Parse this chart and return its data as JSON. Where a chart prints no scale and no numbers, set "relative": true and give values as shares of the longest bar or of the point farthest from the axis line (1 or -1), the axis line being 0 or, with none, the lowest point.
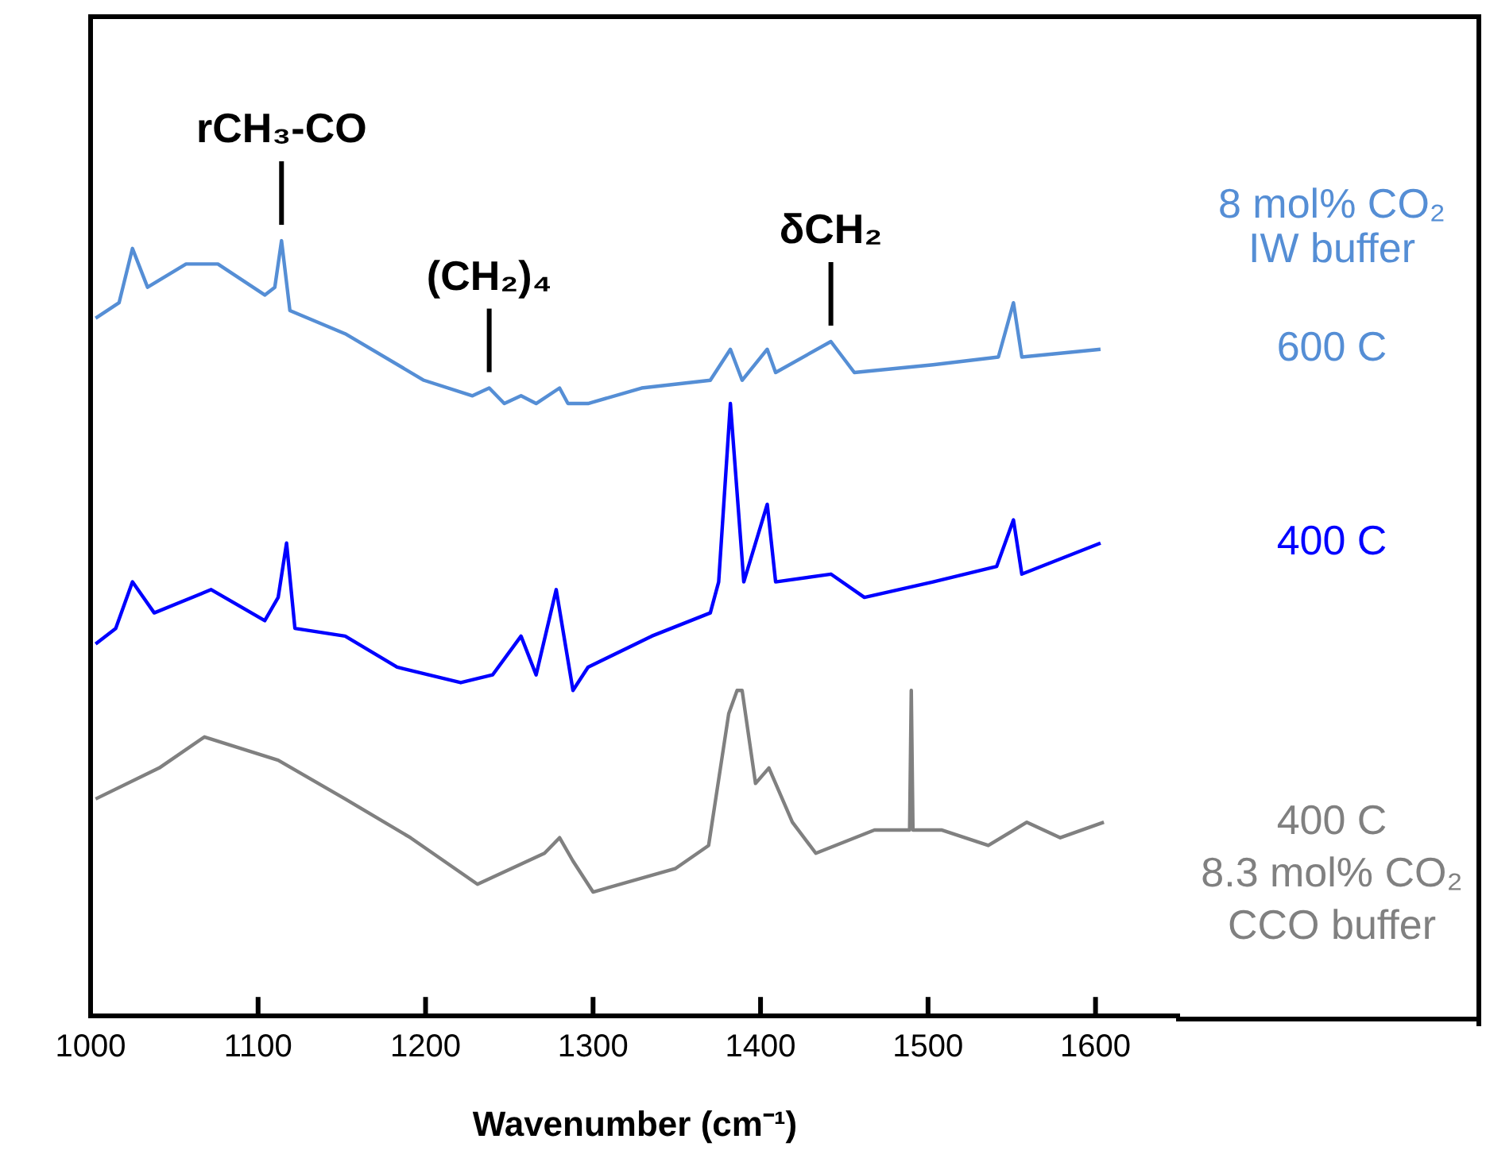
{
  "chart_data": {
    "type": "line",
    "relative": true,
    "xlabel": "Wavenumber (cm⁻¹)",
    "xlim": [
      1000,
      1650
    ],
    "xticks": [
      1000,
      1100,
      1200,
      1300,
      1400,
      1500,
      1600
    ],
    "grid": false,
    "legend": false,
    "marker": "none",
    "line_style": "solid",
    "annotations": [
      {
        "text": "rCH₃-CO",
        "x": 1114,
        "y": 1.0
      },
      {
        "text": "(CH₂)₄",
        "x": 1238,
        "y": 0.81
      },
      {
        "text": "δCH₂",
        "x": 1442,
        "y": 0.87
      },
      "8 mol% CO₂\nIW buffer"
    ],
    "series": [
      {
        "name": "600 C",
        "color": "#558ed5",
        "x": [
          1003,
          1017,
          1025,
          1034,
          1057,
          1076,
          1104,
          1110,
          1114,
          1119,
          1152,
          1199,
          1228,
          1238,
          1247,
          1257,
          1266,
          1280,
          1285,
          1297,
          1329,
          1370,
          1382,
          1389,
          1404,
          1409,
          1442,
          1456,
          1503,
          1542,
          1551,
          1556,
          1603
        ],
        "values": [
          0.9,
          0.92,
          0.99,
          0.94,
          0.97,
          0.97,
          0.93,
          0.94,
          1.0,
          0.91,
          0.88,
          0.82,
          0.8,
          0.81,
          0.79,
          0.8,
          0.79,
          0.81,
          0.79,
          0.79,
          0.81,
          0.82,
          0.86,
          0.82,
          0.86,
          0.83,
          0.87,
          0.83,
          0.84,
          0.85,
          0.92,
          0.85,
          0.86
        ]
      },
      {
        "name": "400 C",
        "color": "#0000ff",
        "x": [
          1003,
          1015,
          1025,
          1038,
          1072,
          1104,
          1112,
          1117,
          1122,
          1152,
          1183,
          1221,
          1240,
          1257,
          1266,
          1278,
          1288,
          1297,
          1335,
          1370,
          1375,
          1382,
          1390,
          1404,
          1409,
          1442,
          1462,
          1503,
          1541,
          1551,
          1556,
          1603
        ],
        "values": [
          0.48,
          0.5,
          0.56,
          0.52,
          0.55,
          0.51,
          0.54,
          0.61,
          0.5,
          0.49,
          0.45,
          0.43,
          0.44,
          0.49,
          0.44,
          0.55,
          0.42,
          0.45,
          0.49,
          0.52,
          0.56,
          0.79,
          0.56,
          0.66,
          0.56,
          0.57,
          0.54,
          0.56,
          0.58,
          0.64,
          0.57,
          0.61
        ]
      },
      {
        "name": "400 C\n8.3 mol% CO₂\nCCO buffer",
        "color": "#808080",
        "x": [
          1003,
          1041,
          1068,
          1112,
          1152,
          1191,
          1231,
          1271,
          1280,
          1288,
          1300,
          1349,
          1369,
          1381,
          1386,
          1389,
          1397,
          1405,
          1419,
          1433,
          1468,
          1489,
          1490,
          1491,
          1508,
          1536,
          1559,
          1579,
          1605
        ],
        "values": [
          0.28,
          0.32,
          0.36,
          0.33,
          0.28,
          0.23,
          0.17,
          0.21,
          0.23,
          0.2,
          0.16,
          0.19,
          0.22,
          0.39,
          0.42,
          0.42,
          0.3,
          0.32,
          0.25,
          0.21,
          0.24,
          0.24,
          0.42,
          0.24,
          0.24,
          0.22,
          0.25,
          0.23,
          0.25
        ]
      }
    ]
  }
}
